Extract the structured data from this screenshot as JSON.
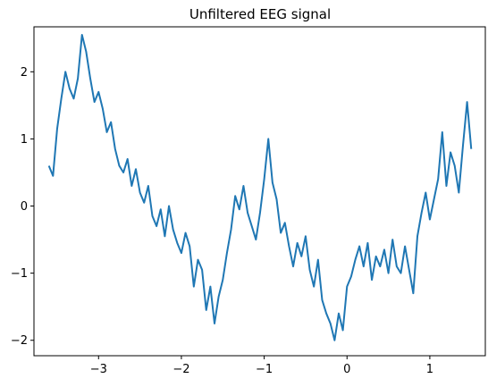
{
  "chart_data": {
    "type": "line",
    "title": "Unfiltered EEG signal",
    "xlabel": "",
    "ylabel": "",
    "xlim": [
      -3.78,
      1.67
    ],
    "ylim": [
      -2.23,
      2.67
    ],
    "xticks": [
      -3,
      -2,
      -1,
      0,
      1
    ],
    "yticks": [
      -2,
      -1,
      0,
      1,
      2
    ],
    "xtick_labels": [
      "−3",
      "−2",
      "−1",
      "0",
      "1"
    ],
    "ytick_labels": [
      "−2",
      "−1",
      "0",
      "1",
      "2"
    ],
    "grid": false,
    "series": [
      {
        "color": "#1f77b4",
        "x": [
          -3.6,
          -3.55,
          -3.5,
          -3.45,
          -3.4,
          -3.35,
          -3.3,
          -3.25,
          -3.2,
          -3.15,
          -3.1,
          -3.05,
          -3.0,
          -2.95,
          -2.9,
          -2.85,
          -2.8,
          -2.75,
          -2.7,
          -2.65,
          -2.6,
          -2.55,
          -2.5,
          -2.45,
          -2.4,
          -2.35,
          -2.3,
          -2.25,
          -2.2,
          -2.15,
          -2.1,
          -2.05,
          -2.0,
          -1.95,
          -1.9,
          -1.85,
          -1.8,
          -1.75,
          -1.7,
          -1.65,
          -1.6,
          -1.55,
          -1.5,
          -1.45,
          -1.4,
          -1.35,
          -1.3,
          -1.25,
          -1.2,
          -1.15,
          -1.1,
          -1.05,
          -1.0,
          -0.95,
          -0.9,
          -0.85,
          -0.8,
          -0.75,
          -0.7,
          -0.65,
          -0.6,
          -0.55,
          -0.5,
          -0.45,
          -0.4,
          -0.35,
          -0.3,
          -0.25,
          -0.2,
          -0.15,
          -0.1,
          -0.05,
          0.0,
          0.05,
          0.1,
          0.15,
          0.2,
          0.25,
          0.3,
          0.35,
          0.4,
          0.45,
          0.5,
          0.55,
          0.6,
          0.65,
          0.7,
          0.75,
          0.8,
          0.85,
          0.9,
          0.95,
          1.0,
          1.05,
          1.1,
          1.15,
          1.2,
          1.25,
          1.3,
          1.35,
          1.4,
          1.45,
          1.5
        ],
        "y": [
          0.6,
          0.45,
          1.15,
          1.6,
          2.0,
          1.75,
          1.6,
          1.9,
          2.55,
          2.3,
          1.9,
          1.55,
          1.7,
          1.45,
          1.1,
          1.25,
          0.85,
          0.6,
          0.5,
          0.7,
          0.3,
          0.55,
          0.2,
          0.05,
          0.3,
          -0.15,
          -0.3,
          -0.05,
          -0.45,
          0.0,
          -0.35,
          -0.55,
          -0.7,
          -0.4,
          -0.6,
          -1.2,
          -0.8,
          -0.95,
          -1.55,
          -1.2,
          -1.75,
          -1.35,
          -1.1,
          -0.7,
          -0.35,
          0.15,
          -0.05,
          0.3,
          -0.1,
          -0.3,
          -0.5,
          -0.1,
          0.4,
          1.0,
          0.35,
          0.1,
          -0.4,
          -0.25,
          -0.6,
          -0.9,
          -0.55,
          -0.75,
          -0.45,
          -0.95,
          -1.2,
          -0.8,
          -1.4,
          -1.6,
          -1.75,
          -2.0,
          -1.6,
          -1.85,
          -1.2,
          -1.05,
          -0.8,
          -0.6,
          -0.9,
          -0.55,
          -1.1,
          -0.75,
          -0.9,
          -0.65,
          -1.0,
          -0.5,
          -0.9,
          -1.0,
          -0.6,
          -0.95,
          -1.3,
          -0.45,
          -0.1,
          0.2,
          -0.2,
          0.1,
          0.4,
          1.1,
          0.3,
          0.8,
          0.6,
          0.2,
          0.9,
          1.55,
          0.85
        ]
      }
    ]
  }
}
